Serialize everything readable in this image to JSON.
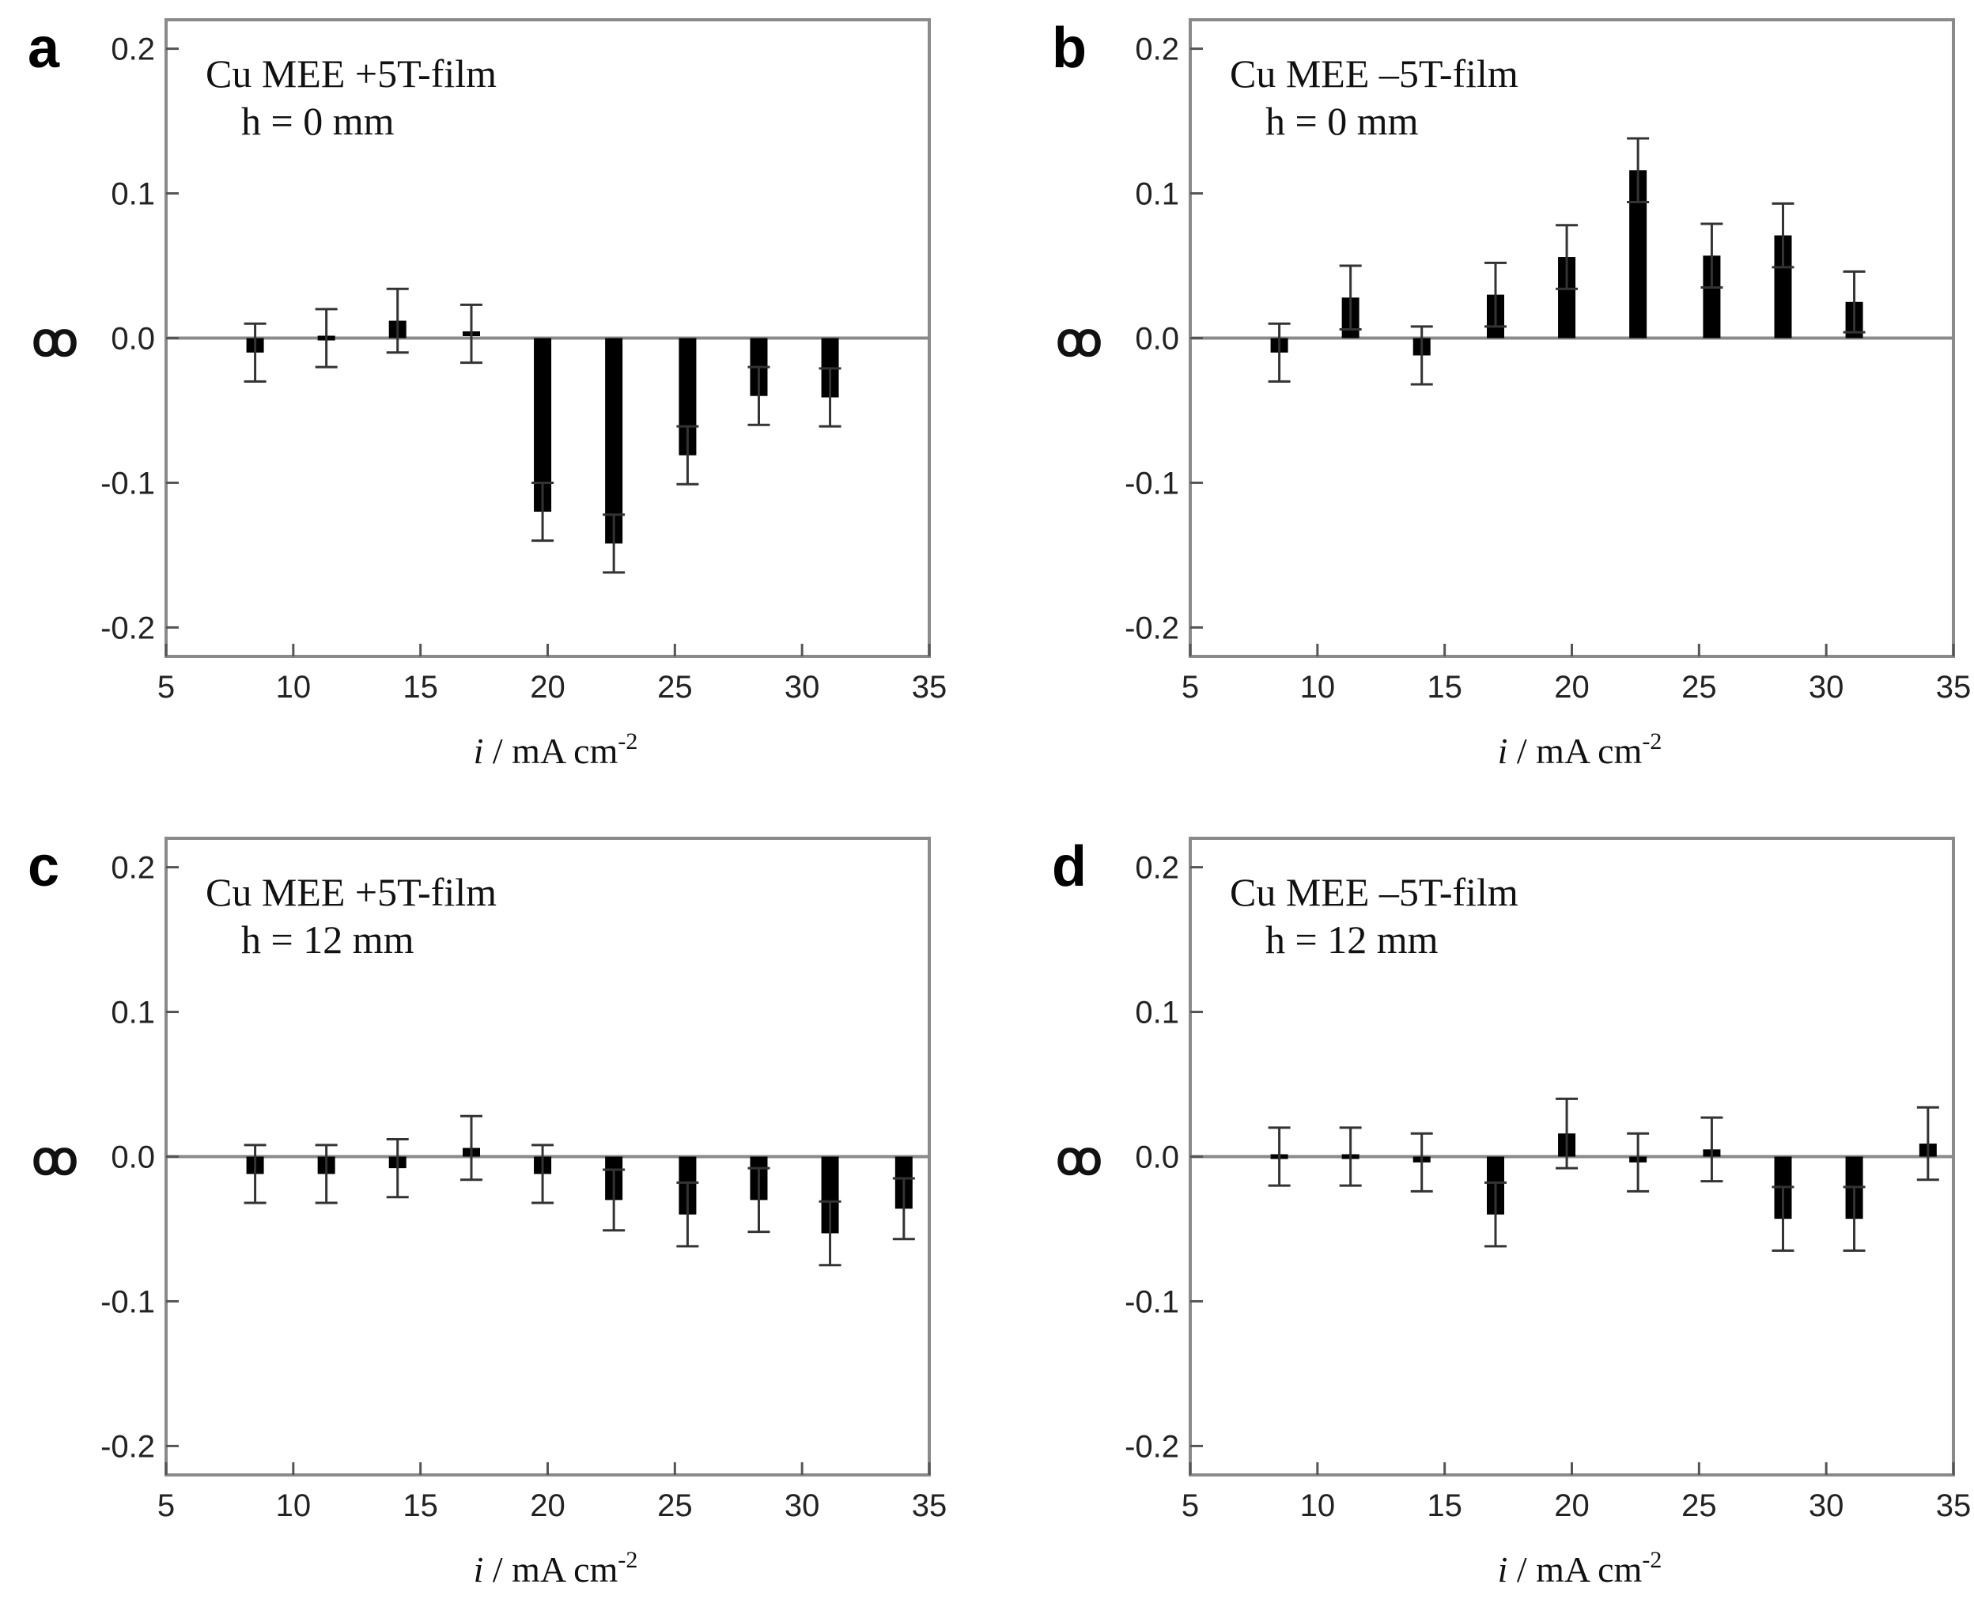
{
  "chart_data": [
    {
      "type": "bar",
      "panel": "a",
      "annotation_line1": "Cu MEE +5T-film",
      "annotation_line2": "h = 0 mm",
      "xlabel_var": "i",
      "xlabel_unit": " / mA cm",
      "xlabel_exp": "-2",
      "ylabel": "ꝏ",
      "xlim": [
        5,
        35
      ],
      "ylim": [
        -0.22,
        0.22
      ],
      "xticks": [
        5,
        10,
        15,
        20,
        25,
        30,
        35
      ],
      "yticks": [
        -0.2,
        -0.1,
        0.0,
        0.1,
        0.2
      ],
      "ytick_labels": [
        "-0.2",
        "-0.1",
        "0.0",
        "0.1",
        "0.2"
      ],
      "x": [
        8.5,
        11.3,
        14.1,
        17.0,
        19.8,
        22.6,
        25.5,
        28.3,
        31.1
      ],
      "values": [
        -0.01,
        0.0,
        0.012,
        0.003,
        -0.12,
        -0.142,
        -0.081,
        -0.04,
        -0.041
      ],
      "errors": [
        0.02,
        0.02,
        0.022,
        0.02,
        0.02,
        0.02,
        0.02,
        0.02,
        0.02
      ]
    },
    {
      "type": "bar",
      "panel": "b",
      "annotation_line1": "Cu MEE –5T-film",
      "annotation_line2": "h = 0 mm",
      "xlabel_var": "i",
      "xlabel_unit": " / mA cm",
      "xlabel_exp": "-2",
      "ylabel": "ꝏ",
      "xlim": [
        5,
        35
      ],
      "ylim": [
        -0.22,
        0.22
      ],
      "xticks": [
        5,
        10,
        15,
        20,
        25,
        30,
        35
      ],
      "yticks": [
        -0.2,
        -0.1,
        0.0,
        0.1,
        0.2
      ],
      "ytick_labels": [
        "-0.2",
        "-0.1",
        "0.0",
        "0.1",
        "0.2"
      ],
      "x": [
        8.5,
        11.3,
        14.1,
        17.0,
        19.8,
        22.6,
        25.5,
        28.3,
        31.1
      ],
      "values": [
        -0.01,
        0.028,
        -0.012,
        0.03,
        0.056,
        0.116,
        0.057,
        0.071,
        0.025
      ],
      "errors": [
        0.02,
        0.022,
        0.02,
        0.022,
        0.022,
        0.022,
        0.022,
        0.022,
        0.021
      ]
    },
    {
      "type": "bar",
      "panel": "c",
      "annotation_line1": "Cu MEE +5T-film",
      "annotation_line2": "h = 12 mm",
      "xlabel_var": "i",
      "xlabel_unit": " / mA cm",
      "xlabel_exp": "-2",
      "ylabel": "ꝏ",
      "xlim": [
        5,
        35
      ],
      "ylim": [
        -0.22,
        0.22
      ],
      "xticks": [
        5,
        10,
        15,
        20,
        25,
        30,
        35
      ],
      "yticks": [
        -0.2,
        -0.1,
        0.0,
        0.1,
        0.2
      ],
      "ytick_labels": [
        "-0.2",
        "-0.1",
        "0.0",
        "0.1",
        "0.2"
      ],
      "x": [
        8.5,
        11.3,
        14.1,
        17.0,
        19.8,
        22.6,
        25.5,
        28.3,
        31.1,
        34.0
      ],
      "values": [
        -0.012,
        -0.012,
        -0.008,
        0.006,
        -0.012,
        -0.03,
        -0.04,
        -0.03,
        -0.053,
        -0.036
      ],
      "errors": [
        0.02,
        0.02,
        0.02,
        0.022,
        0.02,
        0.021,
        0.022,
        0.022,
        0.022,
        0.021
      ]
    },
    {
      "type": "bar",
      "panel": "d",
      "annotation_line1": "Cu MEE –5T-film",
      "annotation_line2": "h = 12 mm",
      "xlabel_var": "i",
      "xlabel_unit": " / mA cm",
      "xlabel_exp": "-2",
      "ylabel": "ꝏ",
      "xlim": [
        5,
        35
      ],
      "ylim": [
        -0.22,
        0.22
      ],
      "xticks": [
        5,
        10,
        15,
        20,
        25,
        30,
        35
      ],
      "yticks": [
        -0.2,
        -0.1,
        0.0,
        0.1,
        0.2
      ],
      "ytick_labels": [
        "-0.2",
        "-0.1",
        "0.0",
        "0.1",
        "0.2"
      ],
      "x": [
        8.5,
        11.3,
        14.1,
        17.0,
        19.8,
        22.6,
        25.5,
        28.3,
        31.1,
        34.0
      ],
      "values": [
        0.0,
        0.0,
        -0.004,
        -0.04,
        0.016,
        -0.004,
        0.005,
        -0.043,
        -0.043,
        0.009
      ],
      "errors": [
        0.02,
        0.02,
        0.02,
        0.022,
        0.024,
        0.02,
        0.022,
        0.022,
        0.022,
        0.025
      ]
    }
  ]
}
